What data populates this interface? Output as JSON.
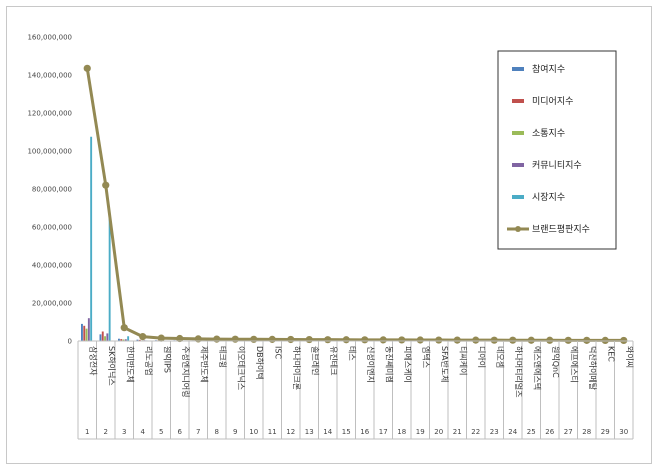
{
  "chart_data": {
    "type": "bar",
    "title": "",
    "xlabel": "",
    "ylabel": "",
    "ylim": [
      0,
      160000000
    ],
    "yticks": [
      "0",
      "20,000,000",
      "40,000,000",
      "60,000,000",
      "80,000,000",
      "100,000,000",
      "120,000,000",
      "140,000,000",
      "160,000,000"
    ],
    "grid": false,
    "legend_placement": "right",
    "categories": [
      "삼성전자",
      "SK하이닉스",
      "한미반도체",
      "리노공업",
      "원익IPS",
      "주성엔지니어링",
      "제주반도체",
      "테크윙",
      "이오테크닉스",
      "DB하이텍",
      "ISC",
      "하나마이크론",
      "솔브레인",
      "유진테크",
      "테스",
      "신성이엔지",
      "동진쎄미켐",
      "피에스케이",
      "엠텍스",
      "SFA반도체",
      "티씨케이",
      "디아이",
      "네오셈",
      "하나머티리얼즈",
      "에스앤에스텍",
      "원익QnC",
      "에프에스티",
      "덕산하이메탈",
      "KEC",
      "와이씨"
    ],
    "numbers": [
      "1",
      "2",
      "3",
      "4",
      "5",
      "6",
      "7",
      "8",
      "9",
      "10",
      "11",
      "12",
      "13",
      "14",
      "15",
      "16",
      "17",
      "18",
      "19",
      "20",
      "21",
      "22",
      "23",
      "24",
      "25",
      "26",
      "27",
      "28",
      "29",
      "30"
    ],
    "series": [
      {
        "name": "참여지수",
        "kind": "bar",
        "color": "#4f81bd",
        "values": [
          9000000,
          3500000,
          1200000,
          700000,
          400000,
          350000,
          300000,
          280000,
          260000,
          240000,
          220000,
          210000,
          200000,
          190000,
          180000,
          170000,
          160000,
          150000,
          140000,
          130000,
          120000,
          110000,
          100000,
          95000,
          90000,
          85000,
          80000,
          75000,
          70000,
          65000
        ]
      },
      {
        "name": "미디어지수",
        "kind": "bar",
        "color": "#c0504d",
        "values": [
          8000000,
          5000000,
          1000000,
          600000,
          350000,
          300000,
          260000,
          240000,
          220000,
          210000,
          200000,
          190000,
          180000,
          170000,
          160000,
          150000,
          140000,
          130000,
          120000,
          110000,
          100000,
          95000,
          90000,
          85000,
          80000,
          75000,
          70000,
          65000,
          60000,
          55000
        ]
      },
      {
        "name": "소통지수",
        "kind": "bar",
        "color": "#9bbb59",
        "values": [
          6500000,
          2500000,
          800000,
          300000,
          200000,
          180000,
          160000,
          150000,
          140000,
          130000,
          120000,
          110000,
          100000,
          95000,
          90000,
          85000,
          80000,
          75000,
          70000,
          65000,
          60000,
          55000,
          50000,
          45000,
          40000,
          38000,
          36000,
          34000,
          32000,
          30000
        ]
      },
      {
        "name": "커뮤니티지수",
        "kind": "bar",
        "color": "#8064a2",
        "values": [
          12000000,
          4000000,
          900000,
          400000,
          250000,
          220000,
          200000,
          190000,
          180000,
          170000,
          160000,
          150000,
          140000,
          130000,
          120000,
          110000,
          100000,
          95000,
          90000,
          85000,
          80000,
          75000,
          70000,
          65000,
          60000,
          55000,
          50000,
          45000,
          40000,
          35000
        ]
      },
      {
        "name": "시장지수",
        "kind": "bar",
        "color": "#4bacc6",
        "values": [
          107500000,
          66000000,
          2500000,
          300000,
          200000,
          190000,
          180000,
          170000,
          160000,
          150000,
          140000,
          130000,
          120000,
          110000,
          100000,
          95000,
          90000,
          85000,
          80000,
          75000,
          70000,
          65000,
          60000,
          55000,
          50000,
          45000,
          40000,
          35000,
          30000,
          25000
        ]
      },
      {
        "name": "브랜드평판지수",
        "kind": "line",
        "color": "#938953",
        "values": [
          143500000,
          82000000,
          7000000,
          2300000,
          1500000,
          1300000,
          1100000,
          1000000,
          950000,
          900000,
          850000,
          800000,
          750000,
          700000,
          650000,
          620000,
          590000,
          560000,
          530000,
          500000,
          480000,
          460000,
          440000,
          420000,
          400000,
          380000,
          360000,
          340000,
          320000,
          300000
        ]
      }
    ]
  }
}
